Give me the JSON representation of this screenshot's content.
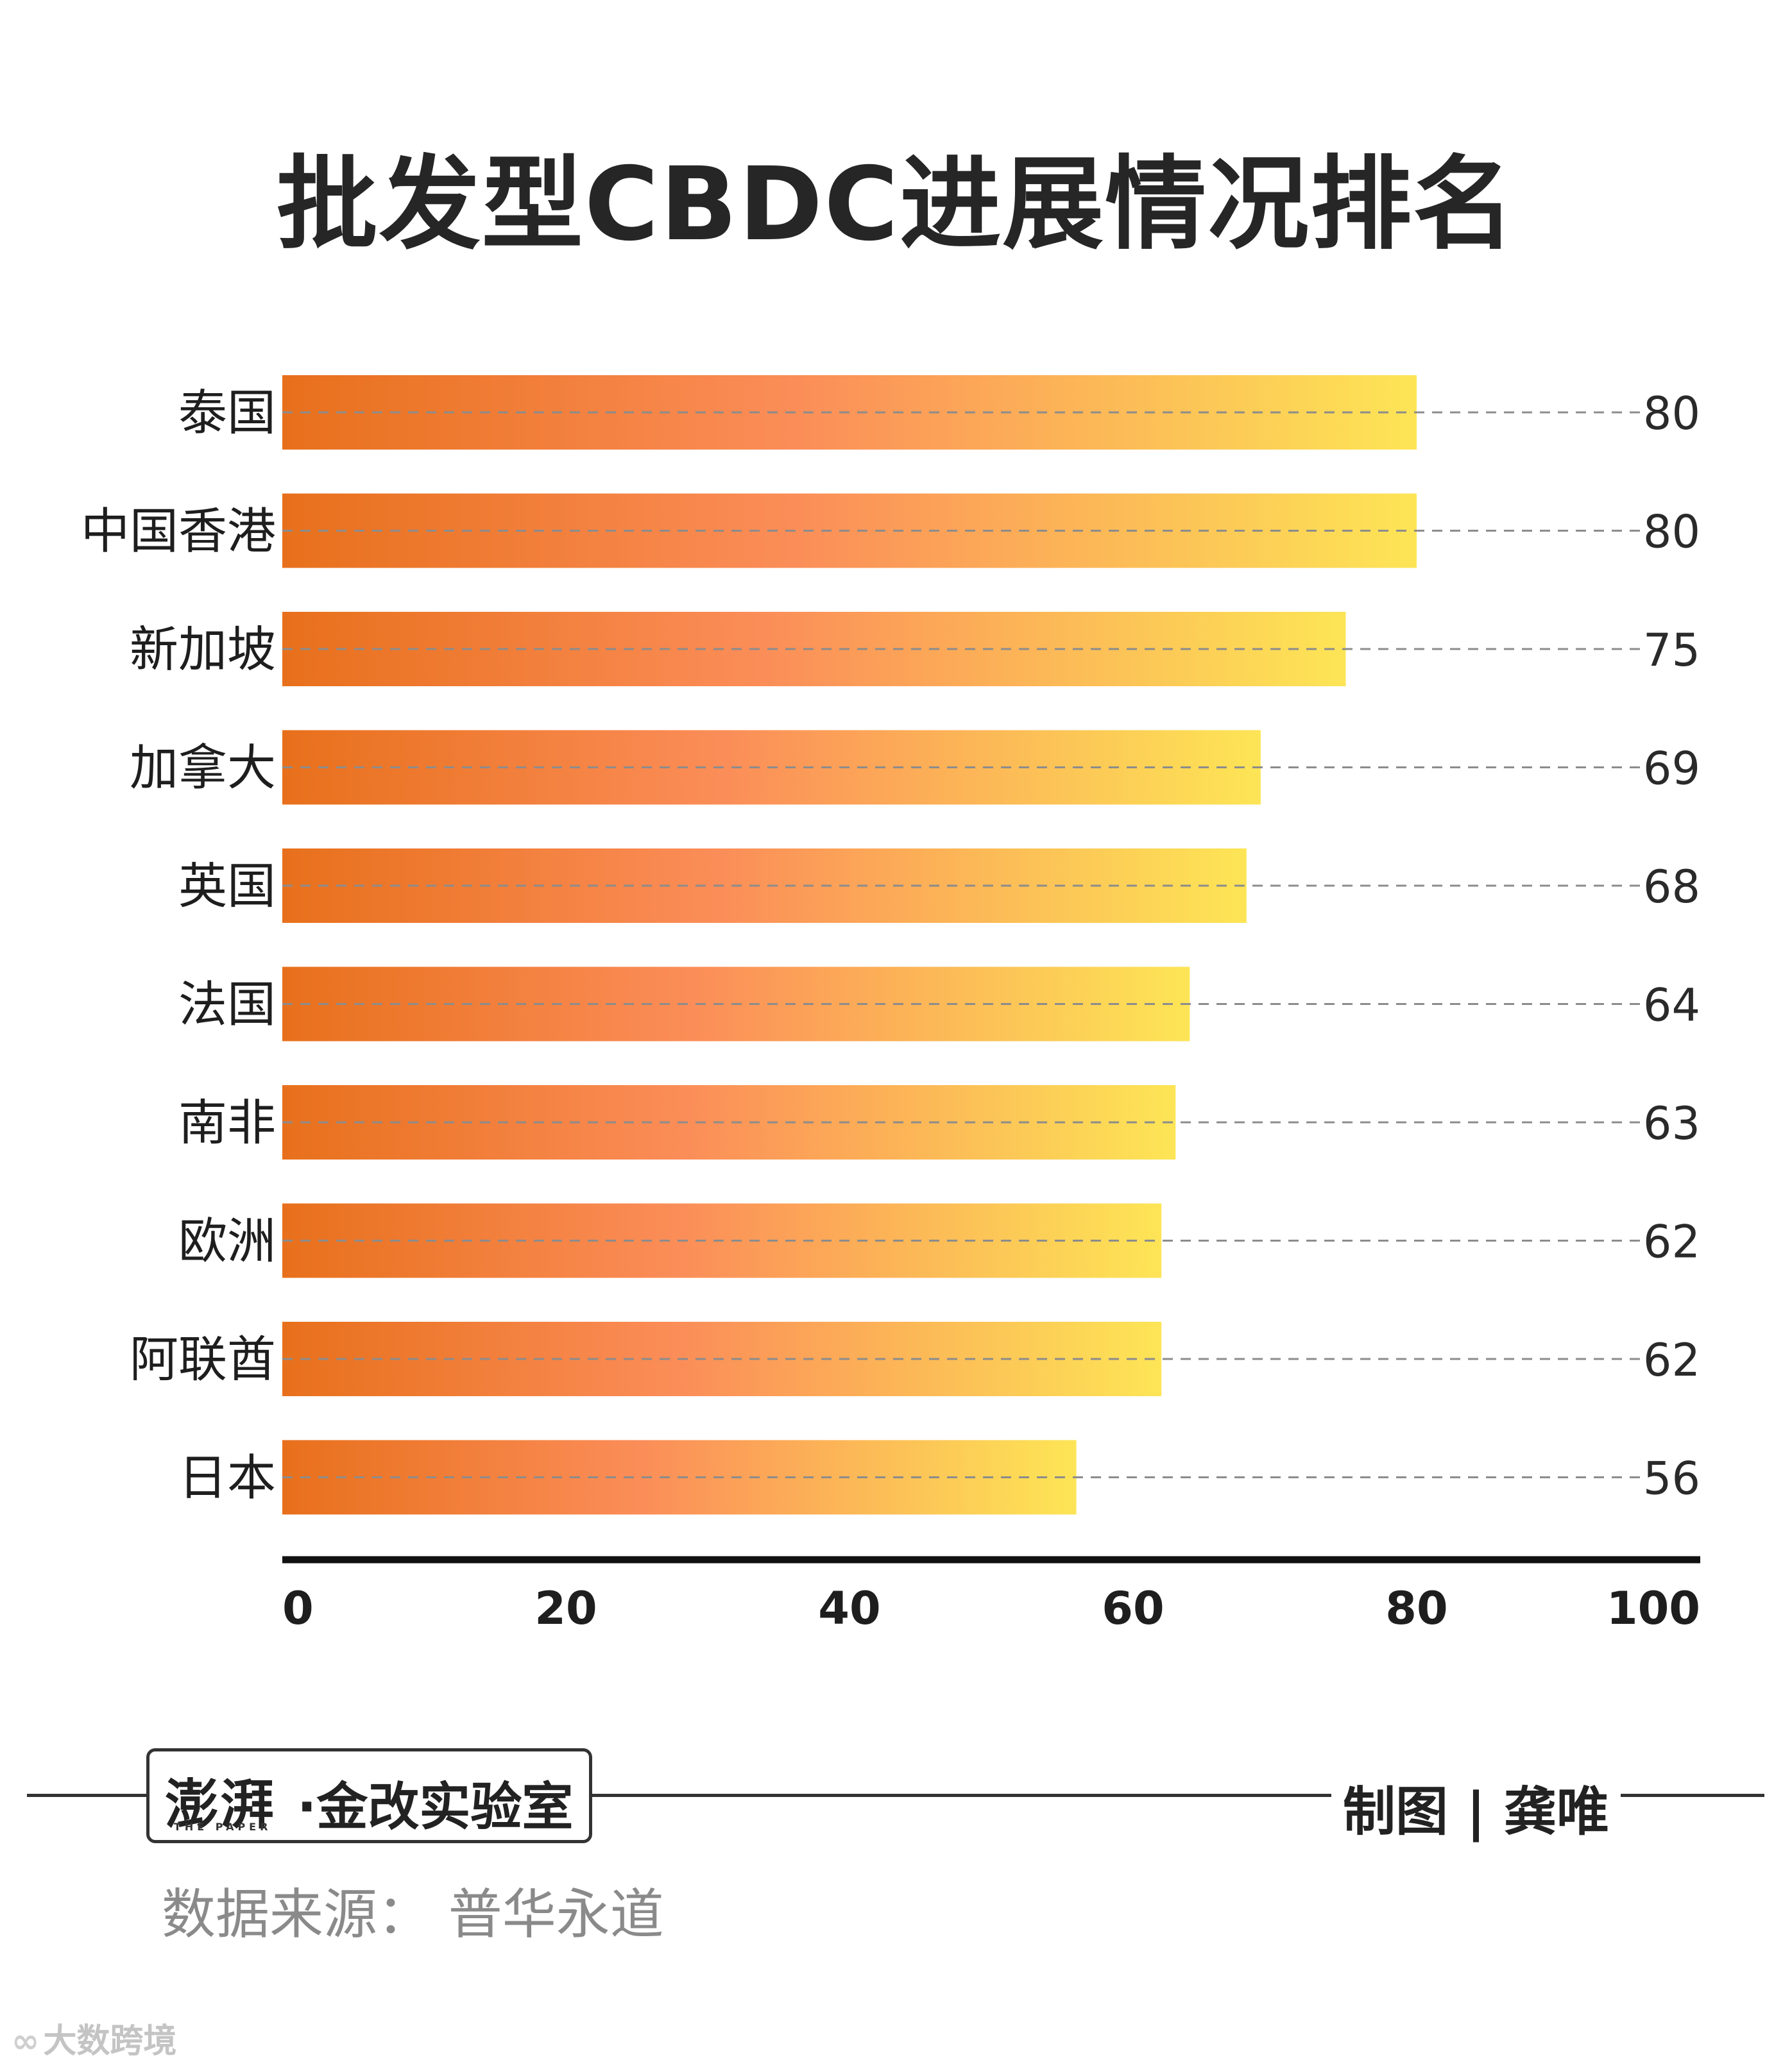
{
  "chart_data": {
    "type": "bar",
    "orientation": "horizontal",
    "title": "批发型CBDC进展情况排名",
    "categories": [
      "泰国",
      "中国香港",
      "新加坡",
      "加拿大",
      "英国",
      "法国",
      "南非",
      "欧洲",
      "阿联酋",
      "日本"
    ],
    "values": [
      80,
      80,
      75,
      69,
      68,
      64,
      63,
      62,
      62,
      56
    ],
    "xlim": [
      0,
      100
    ],
    "xticks": [
      "0",
      "20",
      "40",
      "60",
      "80",
      "100"
    ],
    "grid": false,
    "legend": "none",
    "colors": {
      "bar_start": "#e8701c",
      "bar_mid": "#fb8d58",
      "bar_end": "#fde556",
      "dash": "#8c8c8c",
      "axis": "#111111"
    }
  },
  "footer": {
    "brand_cn": "澎湃",
    "brand_en": "THE PAPER",
    "lab_name": "·金改实验室",
    "credit": "制图 | 龚唯",
    "source": "数据来源：  普华永道",
    "watermark": "大数跨境",
    "watermark_icon": "logo-mark-icon"
  }
}
